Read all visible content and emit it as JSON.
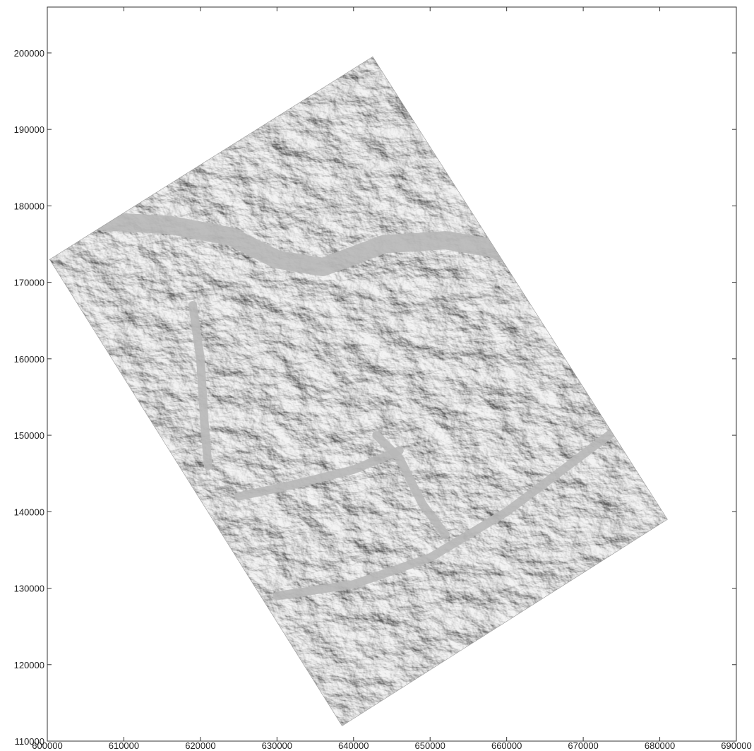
{
  "map": {
    "x_axis": {
      "ticks": [
        "600000",
        "610000",
        "620000",
        "630000",
        "640000",
        "650000",
        "660000",
        "670000",
        "680000",
        "690000"
      ],
      "range": [
        600000,
        690000
      ]
    },
    "y_axis": {
      "ticks": [
        "110000",
        "120000",
        "130000",
        "140000",
        "150000",
        "160000",
        "170000",
        "180000",
        "190000",
        "200000"
      ],
      "range": [
        110000,
        206000
      ]
    },
    "raster": {
      "type": "hillshade relief",
      "colors": {
        "base": "#c9c9c9",
        "valley": "#b8b8b8",
        "highlight": "#f2f2f2",
        "shadow": "#6f6f6f"
      },
      "corners": [
        {
          "x": 600300,
          "y": 173000
        },
        {
          "x": 642500,
          "y": 199500
        },
        {
          "x": 681000,
          "y": 139000
        },
        {
          "x": 638500,
          "y": 112000
        }
      ]
    },
    "valleys": [
      {
        "name": "",
        "points": [
          [
            607000,
            178000
          ],
          [
            616000,
            177500
          ],
          [
            624000,
            176000
          ],
          [
            630000,
            173000
          ],
          [
            636000,
            172000
          ],
          [
            644000,
            175000
          ],
          [
            652000,
            175500
          ],
          [
            658000,
            174500
          ],
          [
            664000,
            172000
          ]
        ]
      },
      {
        "name": "",
        "points": [
          [
            619000,
            167000
          ],
          [
            620000,
            160000
          ],
          [
            620500,
            152000
          ],
          [
            621000,
            146000
          ]
        ]
      },
      {
        "name": "",
        "points": [
          [
            630000,
            129000
          ],
          [
            640000,
            130500
          ],
          [
            650000,
            134000
          ],
          [
            660000,
            140000
          ],
          [
            668000,
            146000
          ],
          [
            676000,
            152000
          ]
        ]
      },
      {
        "name": "",
        "points": [
          [
            625000,
            142000
          ],
          [
            632000,
            143500
          ],
          [
            640000,
            145500
          ],
          [
            646000,
            148000
          ]
        ]
      },
      {
        "name": "",
        "points": [
          [
            643000,
            150000
          ],
          [
            646000,
            147000
          ],
          [
            649000,
            141000
          ],
          [
            652000,
            137000
          ]
        ]
      }
    ]
  }
}
